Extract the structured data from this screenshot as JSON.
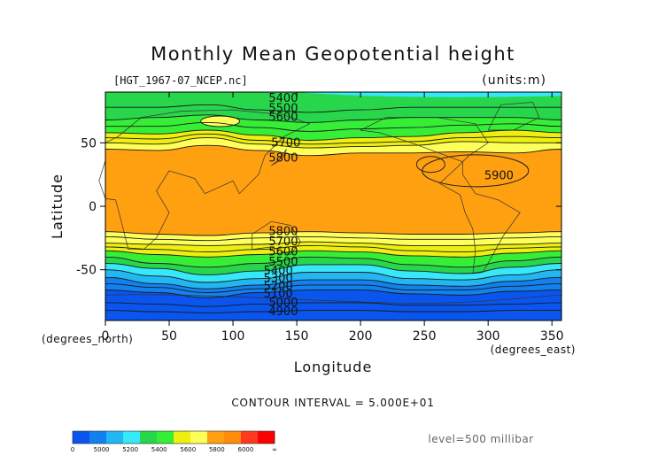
{
  "chart_data": {
    "type": "heatmap",
    "title": "Monthly Mean Geopotential height",
    "subtitle": "[HGT_1967-07_NCEP.nc]",
    "units": "(units:m)",
    "xlabel": "Longitude",
    "ylabel": "Latitude",
    "x_unit_label": "(degrees_east)",
    "y_unit_label": "(degrees_north)",
    "xlim": [
      0,
      357.5
    ],
    "ylim": [
      -90,
      90
    ],
    "x_ticks": [
      0,
      50,
      100,
      150,
      200,
      250,
      300,
      350
    ],
    "y_ticks": [
      -50,
      0,
      50
    ],
    "contour_interval_text": "CONTOUR INTERVAL = 5.000E+01",
    "level_text": "level=500 millibar",
    "contour_labels": [
      {
        "text": "5400",
        "lon": 128,
        "lat": 85
      },
      {
        "text": "5500",
        "lon": 128,
        "lat": 77
      },
      {
        "text": "5600",
        "lon": 128,
        "lat": 70
      },
      {
        "text": "5700",
        "lon": 130,
        "lat": 50
      },
      {
        "text": "5800",
        "lon": 128,
        "lat": 38
      },
      {
        "text": "5900",
        "lon": 297,
        "lat": 24
      },
      {
        "text": "5800",
        "lon": 128,
        "lat": -20
      },
      {
        "text": "5700",
        "lon": 128,
        "lat": -28
      },
      {
        "text": "5600",
        "lon": 128,
        "lat": -36
      },
      {
        "text": "5500",
        "lon": 128,
        "lat": -44
      },
      {
        "text": "5400",
        "lon": 124,
        "lat": -51
      },
      {
        "text": "5300",
        "lon": 124,
        "lat": -57
      },
      {
        "text": "5200",
        "lon": 124,
        "lat": -63
      },
      {
        "text": "5100",
        "lon": 124,
        "lat": -69
      },
      {
        "text": "5000",
        "lon": 128,
        "lat": -76
      },
      {
        "text": "4900",
        "lon": 128,
        "lat": -83
      }
    ],
    "colorbar": {
      "tick_labels": [
        "0",
        "5000",
        "5200",
        "5400",
        "5600",
        "5800",
        "6000",
        "∞"
      ],
      "colors": [
        "#0a55ee",
        "#1380f0",
        "#22b6f2",
        "#36e8f8",
        "#28d64c",
        "#36ee36",
        "#eeee10",
        "#ffff5a",
        "#ffa010",
        "#ff8c0a",
        "#ff3a20",
        "#ff0000"
      ]
    },
    "band_colors": {
      "lt5000": "#0a55ee",
      "5000_5200": "#1380f0",
      "5200_5300": "#22b6f2",
      "5300_5400": "#36e8f8",
      "5400_5500": "#28d64c",
      "5500_5600": "#36ee36",
      "5600_5700": "#eeee10",
      "5700_5800": "#ffff5a",
      "5800_6000": "#ffa010"
    }
  }
}
